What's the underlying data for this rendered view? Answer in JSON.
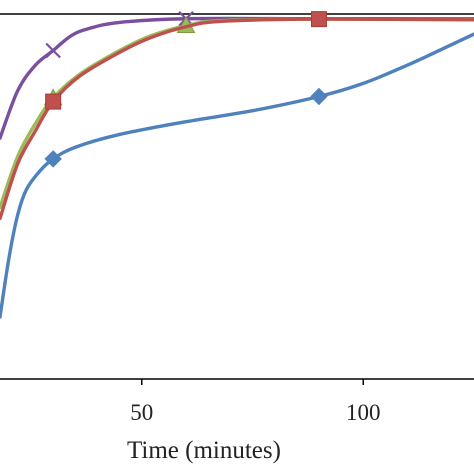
{
  "chart_data": {
    "type": "line",
    "title": "",
    "xlabel": "Time (minutes)",
    "ylabel": "",
    "xlim": [
      18,
      125
    ],
    "ylim": [
      0,
      100
    ],
    "x_ticks": [
      {
        "value": 50,
        "label": "50"
      },
      {
        "value": 100,
        "label": "100"
      }
    ],
    "grid": false,
    "series": [
      {
        "color": "#7b4f9d",
        "marker": "x",
        "curve": [
          [
            18,
            66
          ],
          [
            22,
            79
          ],
          [
            26,
            86
          ],
          [
            30,
            90
          ],
          [
            34,
            94
          ],
          [
            38,
            96
          ],
          [
            45,
            97.7
          ],
          [
            60,
            98.7
          ],
          [
            90,
            98.7
          ],
          [
            125,
            98.7
          ]
        ],
        "markers": [
          [
            30,
            90
          ],
          [
            60,
            98.7
          ]
        ]
      },
      {
        "color": "#9bbb59",
        "marker": "triangle",
        "curve": [
          [
            18,
            47
          ],
          [
            22,
            61
          ],
          [
            26,
            70
          ],
          [
            30,
            77
          ],
          [
            36,
            83.5
          ],
          [
            45,
            90
          ],
          [
            52,
            94
          ],
          [
            60,
            96.8
          ],
          [
            68,
            98.2
          ],
          [
            90,
            98.6
          ],
          [
            125,
            98.5
          ]
        ],
        "markers": [
          [
            30,
            77
          ],
          [
            60,
            96.8
          ]
        ]
      },
      {
        "color": "#c0504d",
        "marker": "square",
        "curve": [
          [
            18,
            44
          ],
          [
            22,
            59
          ],
          [
            26,
            68
          ],
          [
            30,
            76
          ],
          [
            36,
            83
          ],
          [
            45,
            89.5
          ],
          [
            52,
            93.5
          ],
          [
            60,
            96.5
          ],
          [
            68,
            98
          ],
          [
            90,
            98.6
          ],
          [
            125,
            98.4
          ]
        ],
        "markers": [
          [
            30,
            76
          ],
          [
            90,
            98.6
          ]
        ]
      },
      {
        "color": "#4f81bd",
        "marker": "diamond",
        "curve": [
          [
            18,
            17
          ],
          [
            20,
            33
          ],
          [
            22,
            45
          ],
          [
            24,
            52
          ],
          [
            27,
            57
          ],
          [
            30,
            60.3
          ],
          [
            35,
            63.5
          ],
          [
            45,
            67
          ],
          [
            60,
            70.5
          ],
          [
            75,
            73.5
          ],
          [
            90,
            77.4
          ],
          [
            100,
            81
          ],
          [
            110,
            86
          ],
          [
            118,
            90.5
          ],
          [
            125,
            94.5
          ]
        ],
        "markers": [
          [
            30,
            60.3
          ],
          [
            90,
            77.4
          ]
        ]
      }
    ]
  }
}
